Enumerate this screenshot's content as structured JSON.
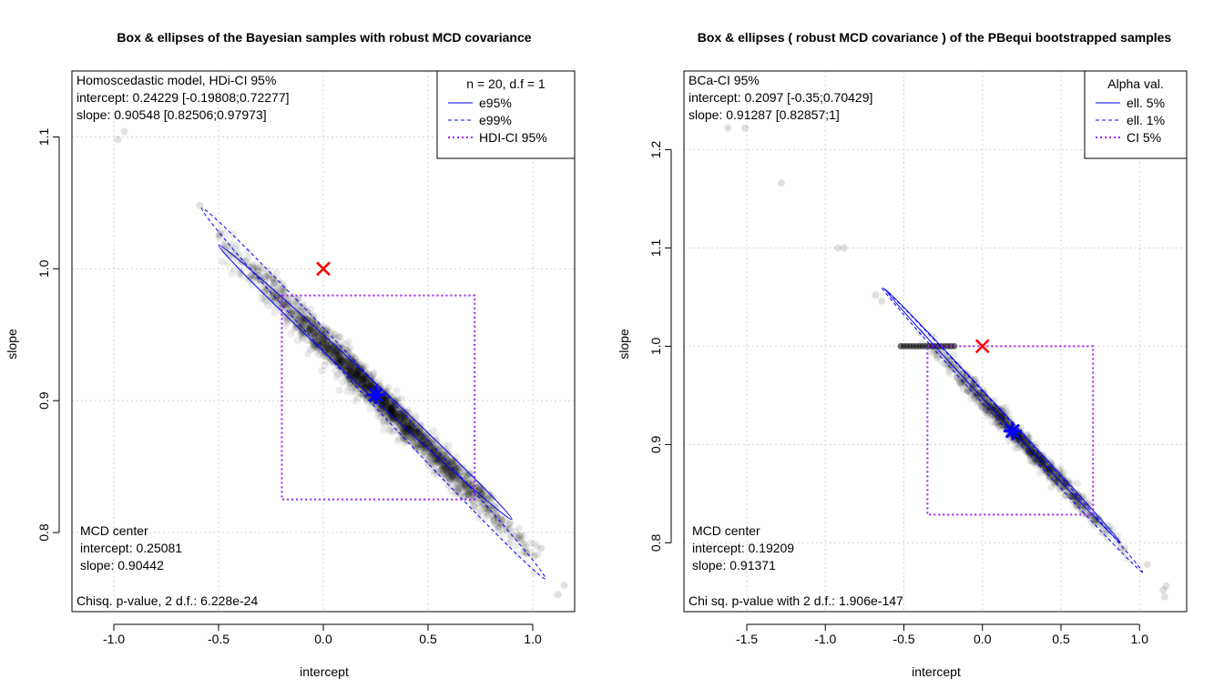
{
  "chart_data": [
    {
      "type": "scatter",
      "title": "Box & ellipses of the Bayesian samples with robust MCD covariance",
      "xlabel": "intercept",
      "ylabel": "slope",
      "xlim": [
        -1.2,
        1.2
      ],
      "ylim": [
        0.74,
        1.15
      ],
      "xticks": [
        -1.0,
        -0.5,
        0.0,
        0.5,
        1.0
      ],
      "xtick_labels": [
        "-1.0",
        "-0.5",
        "0.0",
        "0.5",
        "1.0"
      ],
      "yticks": [
        0.8,
        0.9,
        1.0,
        1.1
      ],
      "ytick_labels": [
        "0.8",
        "0.9",
        "1.0",
        "1.1"
      ],
      "grid": true,
      "annotations_top": [
        "Homoscedastic model, HDi-CI 95%",
        "intercept: 0.24229 [-0.19808;0.72277]",
        "slope: 0.90548 [0.82506;0.97973]"
      ],
      "annotations_bottom": [
        "MCD center",
        " intercept: 0.25081",
        " slope: 0.90442",
        "Chisq. p-value, 2 d.f.:  6.228e-24"
      ],
      "legend": {
        "position": "top-right",
        "title": "n = 20, d.f = 1",
        "items": [
          {
            "label": "e95%",
            "style": "solid",
            "color": "#0000ff"
          },
          {
            "label": "e99%",
            "style": "dashed",
            "color": "#0000ff"
          },
          {
            "label": "HDI-CI 95%",
            "style": "dotted",
            "color": "#a020f0"
          }
        ]
      },
      "reference_point": {
        "x": 0.0,
        "y": 1.0,
        "marker": "x",
        "color": "#ff0000"
      },
      "center_point": {
        "x": 0.25081,
        "y": 0.90442,
        "marker": "asterisk",
        "color": "#0000ff"
      },
      "box": {
        "x": [
          -0.19808,
          0.72277
        ],
        "y": [
          0.82506,
          0.97973
        ],
        "color": "#a020f0"
      },
      "ellipse_95": {
        "x": [
          -0.5,
          0.9
        ],
        "y": [
          0.81,
          1.018
        ]
      },
      "ellipse_99": {
        "x": [
          -0.58,
          1.06
        ],
        "y": [
          0.765,
          1.046
        ]
      },
      "cloud": {
        "slope_per_intercept": -0.1588,
        "intercept_range": [
          -0.45,
          0.98
        ],
        "spread": 0.006
      },
      "outliers": [
        {
          "x": -0.98,
          "y": 1.098
        },
        {
          "x": -0.95,
          "y": 1.104
        },
        {
          "x": -0.59,
          "y": 1.048
        },
        {
          "x": 1.04,
          "y": 0.788
        },
        {
          "x": 1.12,
          "y": 0.753
        },
        {
          "x": 1.15,
          "y": 0.76
        }
      ]
    },
    {
      "type": "scatter",
      "title": "Box & ellipses ( robust MCD covariance ) of the PBequi bootstrapped samples",
      "xlabel": "intercept",
      "ylabel": "slope",
      "xlim": [
        -1.9,
        1.3
      ],
      "ylim": [
        0.73,
        1.28
      ],
      "xticks": [
        -1.5,
        -1.0,
        -0.5,
        0.0,
        0.5,
        1.0
      ],
      "xtick_labels": [
        "-1.5",
        "-1.0",
        "-0.5",
        "0.0",
        "0.5",
        "1.0"
      ],
      "yticks": [
        0.8,
        0.9,
        1.0,
        1.1,
        1.2
      ],
      "ytick_labels": [
        "0.8",
        "0.9",
        "1.0",
        "1.1",
        "1.2"
      ],
      "grid": true,
      "annotations_top": [
        "BCa-CI 95%",
        "intercept: 0.2097 [-0.35;0.70429]",
        "slope: 0.91287 [0.82857;1]"
      ],
      "annotations_bottom": [
        "MCD center",
        " intercept: 0.19209",
        " slope: 0.91371",
        "Chi sq. p-value with 2 d.f.:  1.906e-147"
      ],
      "legend": {
        "position": "top-right",
        "title": "Alpha val.",
        "items": [
          {
            "label": "ell. 5%",
            "style": "solid",
            "color": "#0000ff"
          },
          {
            "label": "ell. 1%",
            "style": "dashed",
            "color": "#0000ff"
          },
          {
            "label": "CI 5%",
            "style": "dotted",
            "color": "#a020f0"
          }
        ]
      },
      "reference_point": {
        "x": 0.0,
        "y": 1.0,
        "marker": "x",
        "color": "#ff0000"
      },
      "center_point": {
        "x": 0.19209,
        "y": 0.91371,
        "marker": "asterisk",
        "color": "#0000ff"
      },
      "box": {
        "x": [
          -0.35,
          0.70429
        ],
        "y": [
          0.82857,
          1.0
        ],
        "color": "#a020f0"
      },
      "ellipse_95": {
        "x": [
          -0.62,
          0.88
        ],
        "y": [
          0.8,
          1.058
        ]
      },
      "ellipse_99": {
        "x": [
          -0.64,
          1.02
        ],
        "y": [
          0.77,
          1.06
        ]
      },
      "cloud": {
        "slope_per_intercept": -0.1683,
        "intercept_range": [
          -0.35,
          0.88
        ],
        "spread": 0.005
      },
      "hline_points": {
        "x_range": [
          -0.52,
          -0.18
        ],
        "y": 1.0
      },
      "outliers": [
        {
          "x": -1.62,
          "y": 1.222
        },
        {
          "x": -1.51,
          "y": 1.222
        },
        {
          "x": -1.28,
          "y": 1.166
        },
        {
          "x": -0.92,
          "y": 1.1
        },
        {
          "x": -0.88,
          "y": 1.1
        },
        {
          "x": -0.68,
          "y": 1.052
        },
        {
          "x": -0.64,
          "y": 1.046
        },
        {
          "x": 1.05,
          "y": 0.778
        },
        {
          "x": 1.15,
          "y": 0.752
        },
        {
          "x": 1.17,
          "y": 0.756
        },
        {
          "x": 1.16,
          "y": 0.745
        }
      ]
    }
  ]
}
